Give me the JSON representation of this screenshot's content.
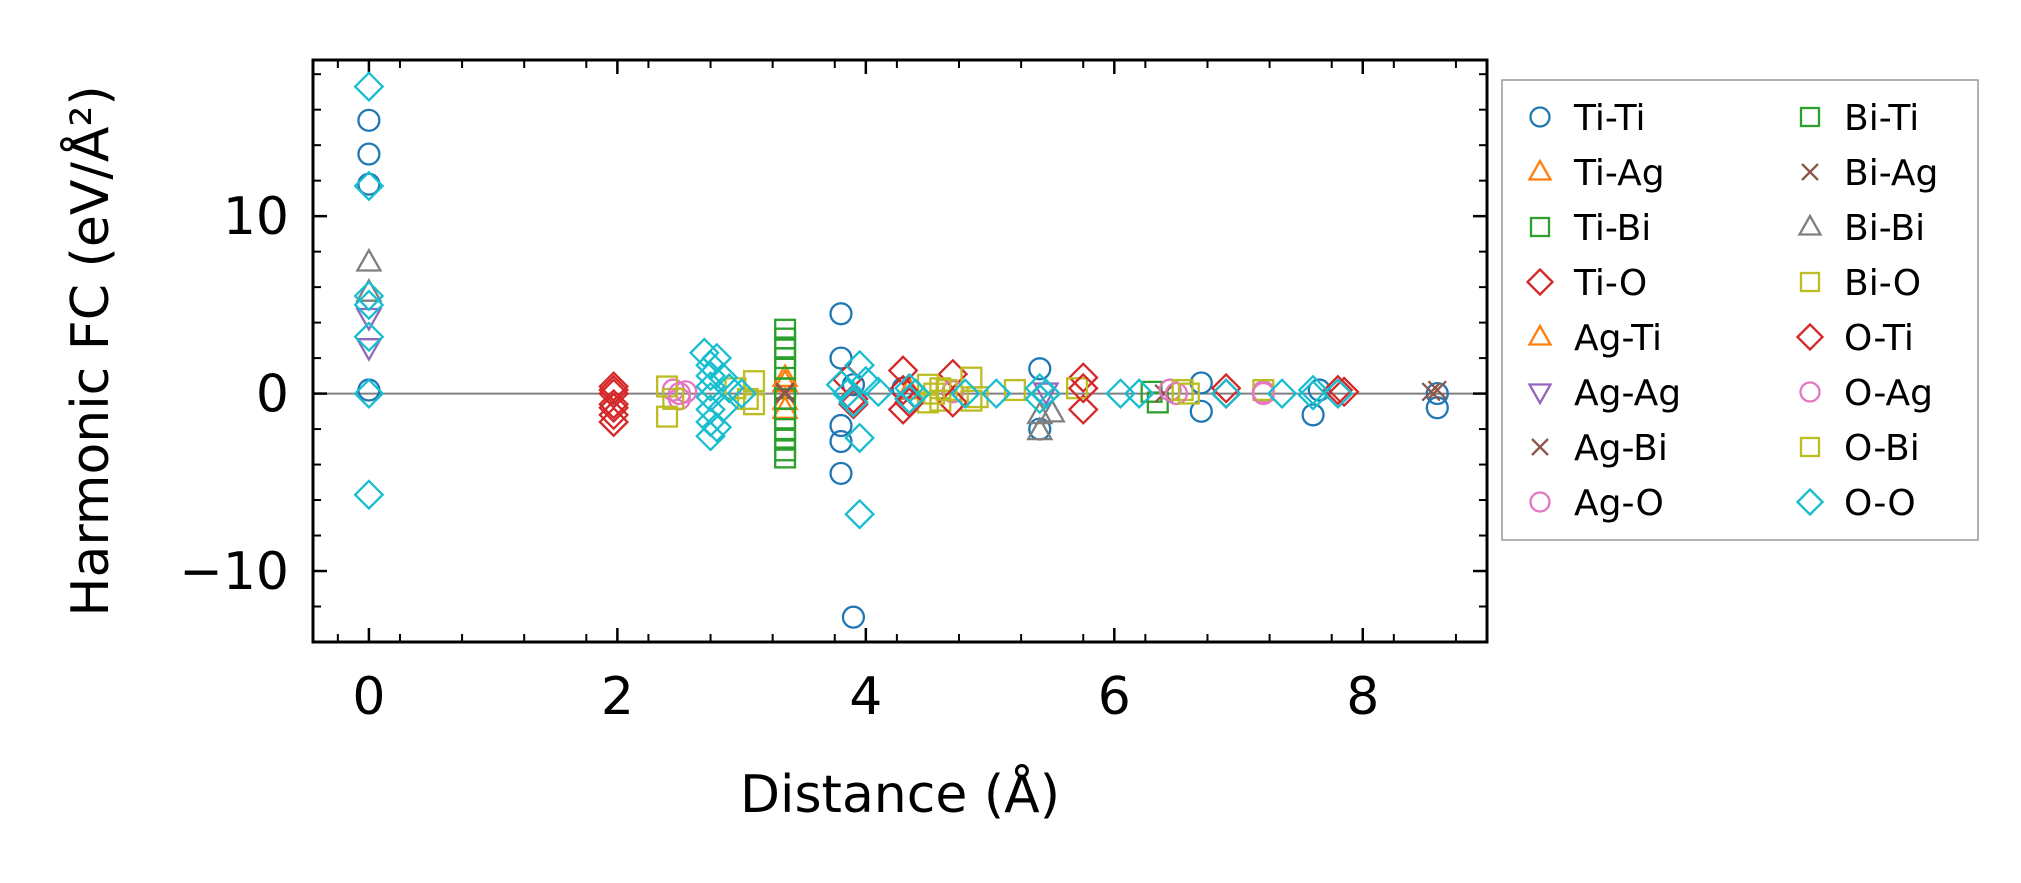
{
  "chart_data": {
    "type": "scatter",
    "xlabel": "Distance (Å)",
    "ylabel": "Harmonic FC (eV/Å²)",
    "xlim": [
      -0.45,
      9.0
    ],
    "ylim": [
      -14.0,
      18.8
    ],
    "x_ticks": [
      "0",
      "2",
      "4",
      "6",
      "8"
    ],
    "y_ticks": [
      "−10",
      "0",
      "10"
    ],
    "x_tick_values": [
      0,
      2,
      4,
      6,
      8
    ],
    "y_tick_values": [
      -10,
      0,
      10
    ],
    "legend_position": "outside-right",
    "zero_line": true,
    "series": [
      {
        "name": "Ti-Ti",
        "marker": "circle",
        "color": "#1f77b4",
        "points": [
          [
            0,
            15.4
          ],
          [
            0,
            13.5
          ],
          [
            0,
            11.8
          ],
          [
            0,
            0.2
          ],
          [
            3.8,
            4.5
          ],
          [
            3.8,
            2
          ],
          [
            3.8,
            -1.8
          ],
          [
            3.8,
            -2.7
          ],
          [
            3.8,
            -4.5
          ],
          [
            3.9,
            -12.6
          ],
          [
            3.9,
            0.5
          ],
          [
            4.3,
            0.3
          ],
          [
            5.4,
            1.4
          ],
          [
            5.4,
            -2
          ],
          [
            6.7,
            0.6
          ],
          [
            6.7,
            -1
          ],
          [
            7.6,
            -1.2
          ],
          [
            7.65,
            0.2
          ],
          [
            8.6,
            0
          ],
          [
            8.6,
            -0.8
          ]
        ]
      },
      {
        "name": "Ti-Ag",
        "marker": "triangle",
        "color": "#ff7f0e",
        "points": [
          [
            3.35,
            0.6
          ],
          [
            3.35,
            -0.4
          ],
          [
            4.35,
            0.2
          ]
        ]
      },
      {
        "name": "Ti-Bi",
        "marker": "square",
        "color": "#2ca02c",
        "points": [
          [
            3.35,
            0.3
          ],
          [
            3.35,
            -0.3
          ],
          [
            6.3,
            0.1
          ],
          [
            6.35,
            -0.5
          ]
        ]
      },
      {
        "name": "Ti-O",
        "marker": "diamond",
        "color": "#d62728",
        "points": [
          [
            1.97,
            0.4
          ],
          [
            1.97,
            0
          ],
          [
            1.97,
            -0.6
          ],
          [
            1.97,
            -1.2
          ],
          [
            1.97,
            -1.6
          ],
          [
            3.85,
            0.8
          ],
          [
            3.9,
            -0.6
          ],
          [
            4.3,
            1.3
          ],
          [
            4.3,
            -0.9
          ],
          [
            4.7,
            1.1
          ],
          [
            5.75,
            0.9
          ],
          [
            5.75,
            -0.9
          ],
          [
            6.9,
            0.3
          ],
          [
            7.8,
            0.2
          ]
        ]
      },
      {
        "name": "Ag-Ti",
        "marker": "triangle",
        "color": "#ff7f0e",
        "points": [
          [
            3.35,
            0.9
          ],
          [
            3.35,
            -0.9
          ]
        ]
      },
      {
        "name": "Ag-Ag",
        "marker": "triangle-down",
        "color": "#9467bd",
        "points": [
          [
            0,
            4.3
          ],
          [
            0,
            2.6
          ],
          [
            5.45,
            0.1
          ]
        ]
      },
      {
        "name": "Ag-Bi",
        "marker": "x",
        "color": "#8c564b",
        "points": [
          [
            3.35,
            0.1
          ],
          [
            6.4,
            0
          ],
          [
            8.6,
            0.2
          ]
        ]
      },
      {
        "name": "Ag-O",
        "marker": "circle",
        "color": "#e377c2",
        "points": [
          [
            2.45,
            0.2
          ],
          [
            2.5,
            -0.3
          ],
          [
            2.55,
            0.1
          ],
          [
            4.7,
            0.1
          ],
          [
            6.45,
            0.2
          ],
          [
            7.2,
            0.1
          ]
        ]
      },
      {
        "name": "Bi-Ti",
        "marker": "square",
        "color": "#2ca02c",
        "points": [
          [
            3.35,
            3.6
          ],
          [
            3.35,
            3.1
          ],
          [
            3.35,
            2.6
          ],
          [
            3.35,
            2.0
          ],
          [
            3.35,
            1.4
          ],
          [
            3.35,
            -1.4
          ],
          [
            3.35,
            -2.0
          ],
          [
            3.35,
            -2.6
          ],
          [
            3.35,
            -3.2
          ],
          [
            3.35,
            -3.6
          ]
        ]
      },
      {
        "name": "Bi-Ag",
        "marker": "x",
        "color": "#8c564b",
        "points": [
          [
            3.35,
            0
          ],
          [
            8.55,
            0.1
          ]
        ]
      },
      {
        "name": "Bi-Bi",
        "marker": "triangle",
        "color": "#7f7f7f",
        "points": [
          [
            0,
            7.4
          ],
          [
            0,
            5.7
          ],
          [
            5.4,
            -1.2
          ],
          [
            5.4,
            -2.1
          ],
          [
            5.5,
            -1.1
          ]
        ]
      },
      {
        "name": "Bi-O",
        "marker": "square",
        "color": "#bcbd22",
        "points": [
          [
            2.4,
            0.4
          ],
          [
            2.4,
            -1.3
          ],
          [
            2.45,
            -0.3
          ],
          [
            3.1,
            0.7
          ],
          [
            3.1,
            -0.6
          ],
          [
            4.5,
            0.5
          ],
          [
            4.5,
            -0.5
          ],
          [
            4.6,
            0.3
          ],
          [
            4.6,
            -0.4
          ],
          [
            4.85,
            0.9
          ],
          [
            4.85,
            -0.4
          ],
          [
            5.2,
            0.2
          ],
          [
            5.7,
            0.3
          ],
          [
            6.55,
            0.2
          ],
          [
            7.2,
            0.2
          ]
        ]
      },
      {
        "name": "O-Ti",
        "marker": "diamond",
        "color": "#d62728",
        "points": [
          [
            1.97,
            0.2
          ],
          [
            1.97,
            -0.8
          ],
          [
            3.9,
            -0.3
          ],
          [
            4.3,
            0.2
          ],
          [
            4.35,
            -0.5
          ],
          [
            4.7,
            -0.5
          ],
          [
            5.75,
            0.3
          ],
          [
            6.9,
            0
          ],
          [
            7.85,
            0.1
          ]
        ]
      },
      {
        "name": "O-Ag",
        "marker": "circle",
        "color": "#e377c2",
        "points": [
          [
            2.5,
            0
          ],
          [
            6.5,
            0
          ],
          [
            7.2,
            0
          ]
        ]
      },
      {
        "name": "O-Bi",
        "marker": "square",
        "color": "#bcbd22",
        "points": [
          [
            2.95,
            0.3
          ],
          [
            3.05,
            -0.3
          ],
          [
            4.55,
            0
          ],
          [
            4.65,
            0.2
          ],
          [
            4.9,
            -0.2
          ],
          [
            6.6,
            0
          ]
        ]
      },
      {
        "name": "O-O",
        "marker": "diamond",
        "color": "#17becf",
        "points": [
          [
            0,
            17.3
          ],
          [
            0,
            11.7
          ],
          [
            0,
            5.5
          ],
          [
            0,
            5.0
          ],
          [
            0,
            3.2
          ],
          [
            0,
            0
          ],
          [
            0,
            -5.7
          ],
          [
            2.7,
            2.3
          ],
          [
            2.75,
            1.6
          ],
          [
            2.75,
            1.0
          ],
          [
            2.75,
            0.4
          ],
          [
            2.75,
            -0.2
          ],
          [
            2.75,
            -0.9
          ],
          [
            2.75,
            -1.6
          ],
          [
            2.75,
            -2.4
          ],
          [
            2.8,
            2.0
          ],
          [
            2.8,
            -1.9
          ],
          [
            2.85,
            0.9
          ],
          [
            2.85,
            -0.8
          ],
          [
            2.9,
            0.3
          ],
          [
            3.0,
            0
          ],
          [
            3.8,
            0.5
          ],
          [
            3.85,
            0
          ],
          [
            3.9,
            -0.5
          ],
          [
            3.95,
            1.6
          ],
          [
            3.95,
            -2.5
          ],
          [
            3.95,
            -6.8
          ],
          [
            4.0,
            0.7
          ],
          [
            4.1,
            0.1
          ],
          [
            4.35,
            0.3
          ],
          [
            4.35,
            -0.3
          ],
          [
            4.4,
            0
          ],
          [
            4.8,
            0
          ],
          [
            5.05,
            0
          ],
          [
            5.4,
            0.3
          ],
          [
            5.4,
            -0.3
          ],
          [
            5.45,
            0
          ],
          [
            6.05,
            0
          ],
          [
            6.2,
            0
          ],
          [
            6.9,
            0
          ],
          [
            7.35,
            0
          ],
          [
            7.6,
            0.2
          ],
          [
            7.6,
            -0.1
          ],
          [
            7.8,
            0
          ]
        ]
      }
    ]
  }
}
